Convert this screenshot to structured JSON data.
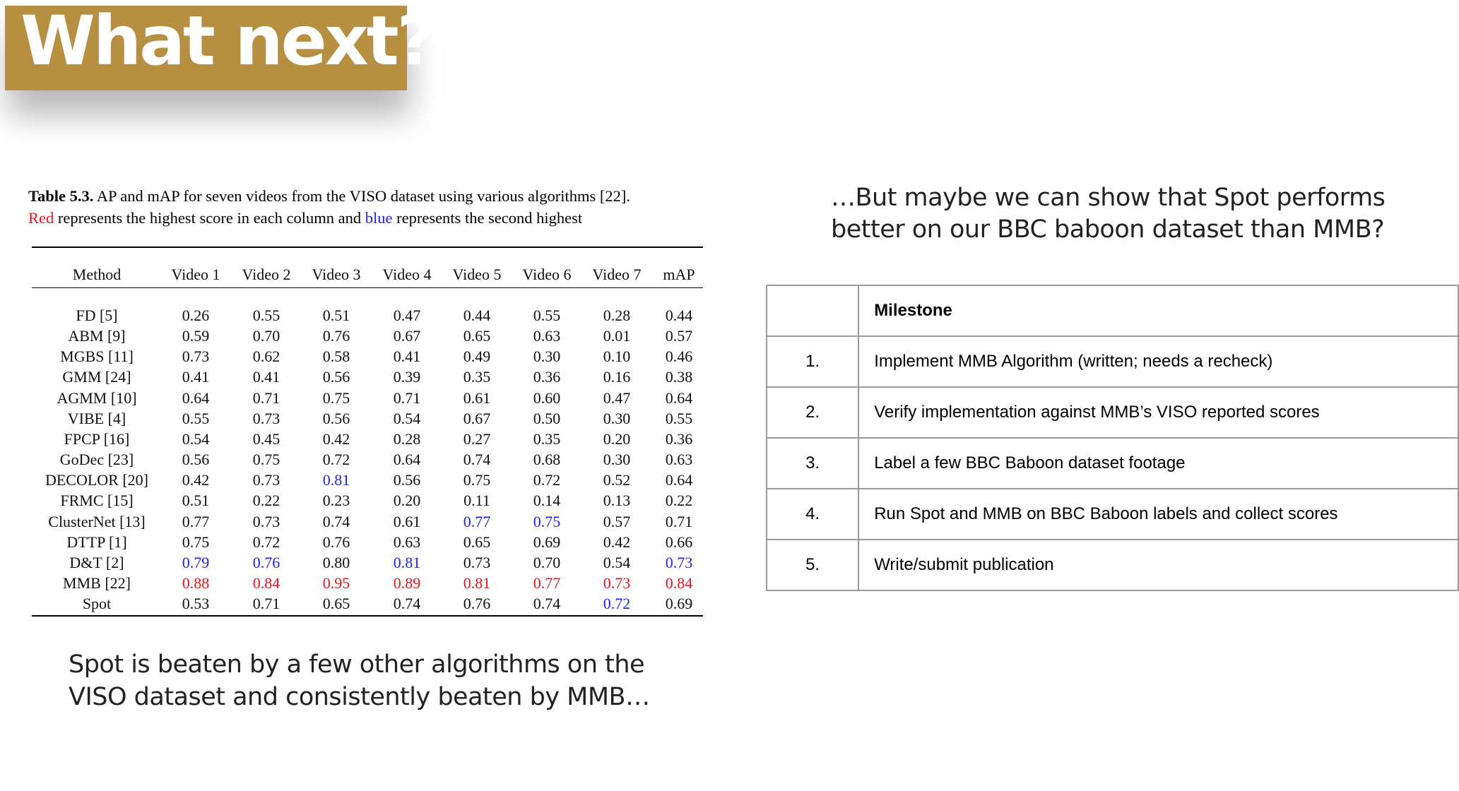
{
  "slide_title": "What next?",
  "viso_table": {
    "caption_label": "Table 5.3.",
    "caption_text": " AP and mAP for seven videos from the VISO dataset using various algorithms [22].",
    "caption_red": "Red",
    "caption_mid": " represents the highest score in each column and ",
    "caption_blue": "blue",
    "caption_end": " represents the second highest",
    "headers": [
      "Method",
      "Video 1",
      "Video 2",
      "Video 3",
      "Video 4",
      "Video 5",
      "Video 6",
      "Video 7",
      "mAP"
    ],
    "rows": [
      {
        "method": "FD [5]",
        "values": [
          "0.26",
          "0.55",
          "0.51",
          "0.47",
          "0.44",
          "0.55",
          "0.28",
          "0.44"
        ]
      },
      {
        "method": "ABM [9]",
        "values": [
          "0.59",
          "0.70",
          "0.76",
          "0.67",
          "0.65",
          "0.63",
          "0.01",
          "0.57"
        ]
      },
      {
        "method": "MGBS [11]",
        "values": [
          "0.73",
          "0.62",
          "0.58",
          "0.41",
          "0.49",
          "0.30",
          "0.10",
          "0.46"
        ]
      },
      {
        "method": "GMM [24]",
        "values": [
          "0.41",
          "0.41",
          "0.56",
          "0.39",
          "0.35",
          "0.36",
          "0.16",
          "0.38"
        ]
      },
      {
        "method": "AGMM [10]",
        "values": [
          "0.64",
          "0.71",
          "0.75",
          "0.71",
          "0.61",
          "0.60",
          "0.47",
          "0.64"
        ]
      },
      {
        "method": "VIBE [4]",
        "values": [
          "0.55",
          "0.73",
          "0.56",
          "0.54",
          "0.67",
          "0.50",
          "0.30",
          "0.55"
        ]
      },
      {
        "method": "FPCP [16]",
        "values": [
          "0.54",
          "0.45",
          "0.42",
          "0.28",
          "0.27",
          "0.35",
          "0.20",
          "0.36"
        ]
      },
      {
        "method": "GoDec [23]",
        "values": [
          "0.56",
          "0.75",
          "0.72",
          "0.64",
          "0.74",
          "0.68",
          "0.30",
          "0.63"
        ]
      },
      {
        "method": "DECOLOR [20]",
        "values": [
          "0.42",
          "0.73",
          "0.81",
          "0.56",
          "0.75",
          "0.72",
          "0.52",
          "0.64"
        ]
      },
      {
        "method": "FRMC [15]",
        "values": [
          "0.51",
          "0.22",
          "0.23",
          "0.20",
          "0.11",
          "0.14",
          "0.13",
          "0.22"
        ]
      },
      {
        "method": "ClusterNet [13]",
        "values": [
          "0.77",
          "0.73",
          "0.74",
          "0.61",
          "0.77",
          "0.75",
          "0.57",
          "0.71"
        ]
      },
      {
        "method": "DTTP [1]",
        "values": [
          "0.75",
          "0.72",
          "0.76",
          "0.63",
          "0.65",
          "0.69",
          "0.42",
          "0.66"
        ]
      },
      {
        "method": "D&T [2]",
        "values": [
          "0.79",
          "0.76",
          "0.80",
          "0.81",
          "0.73",
          "0.70",
          "0.54",
          "0.73"
        ]
      },
      {
        "method": "MMB [22]",
        "values": [
          "0.88",
          "0.84",
          "0.95",
          "0.89",
          "0.81",
          "0.77",
          "0.73",
          "0.84"
        ]
      },
      {
        "method": "Spot",
        "values": [
          "0.53",
          "0.71",
          "0.65",
          "0.74",
          "0.76",
          "0.74",
          "0.72",
          "0.69"
        ]
      }
    ],
    "highlight_colors": {
      "highest": "#e8141c",
      "second": "#1f1ff0"
    },
    "second_highest_cells": [
      [
        8,
        2
      ],
      [
        10,
        4
      ],
      [
        10,
        5
      ],
      [
        12,
        0
      ],
      [
        12,
        1
      ],
      [
        12,
        3
      ],
      [
        12,
        7
      ],
      [
        14,
        6
      ]
    ],
    "highest_cells": [
      [
        13,
        0
      ],
      [
        13,
        1
      ],
      [
        13,
        2
      ],
      [
        13,
        3
      ],
      [
        13,
        4
      ],
      [
        13,
        5
      ],
      [
        13,
        6
      ],
      [
        13,
        7
      ]
    ]
  },
  "left_note": "Spot is beaten by a few other algorithms on the VISO dataset and consistently beaten by MMB…",
  "right_note": "…But maybe we can show that Spot performs better on our BBC baboon dataset than MMB?",
  "milestones": {
    "header": "Milestone",
    "items": [
      {
        "num": "1.",
        "text": "Implement MMB Algorithm (written; needs a recheck)"
      },
      {
        "num": "2.",
        "text": "Verify implementation against MMB’s VISO reported scores"
      },
      {
        "num": "3.",
        "text": "Label a few BBC Baboon dataset footage"
      },
      {
        "num": "4.",
        "text": "Run Spot and MMB on BBC Baboon labels and collect scores"
      },
      {
        "num": "5.",
        "text": "Write/submit publication"
      }
    ]
  },
  "theme": {
    "title_bg": "#b78f40",
    "title_fg": "#ffffff"
  }
}
